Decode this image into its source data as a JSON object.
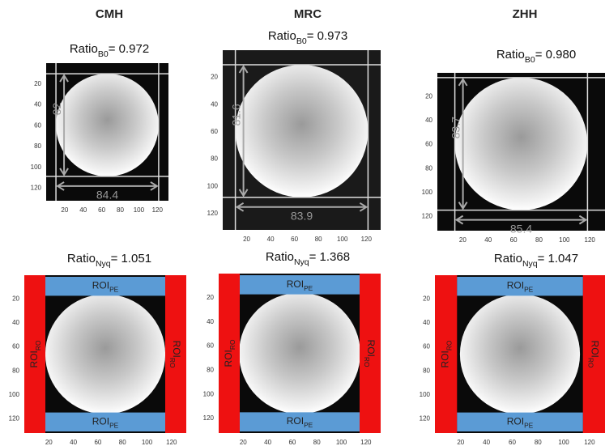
{
  "figure": {
    "columns": [
      {
        "site": "CMH",
        "b0": {
          "ratio": "Ratio",
          "sub": "B0",
          "value": "= 0.972"
        },
        "height": "82",
        "width": "84.4",
        "nyq": {
          "ratio": "Ratio",
          "sub": "Nyq",
          "value": "= 1.051"
        }
      },
      {
        "site": "MRC",
        "b0": {
          "ratio": "Ratio",
          "sub": "B0",
          "value": "= 0.973"
        },
        "height": "81.6",
        "width": "83.9",
        "nyq": {
          "ratio": "Ratio",
          "sub": "Nyq",
          "value": "= 1.368"
        }
      },
      {
        "site": "ZHH",
        "b0": {
          "ratio": "Ratio",
          "sub": "B0",
          "value": "= 0.980"
        },
        "height": "83.7",
        "width": "85.4",
        "nyq": {
          "ratio": "Ratio",
          "sub": "Nyq",
          "value": "= 1.047"
        }
      }
    ],
    "ticks": [
      "20",
      "40",
      "60",
      "80",
      "100",
      "120"
    ],
    "roi": {
      "label": "ROI",
      "pe": "PE",
      "ro": "RO"
    }
  }
}
